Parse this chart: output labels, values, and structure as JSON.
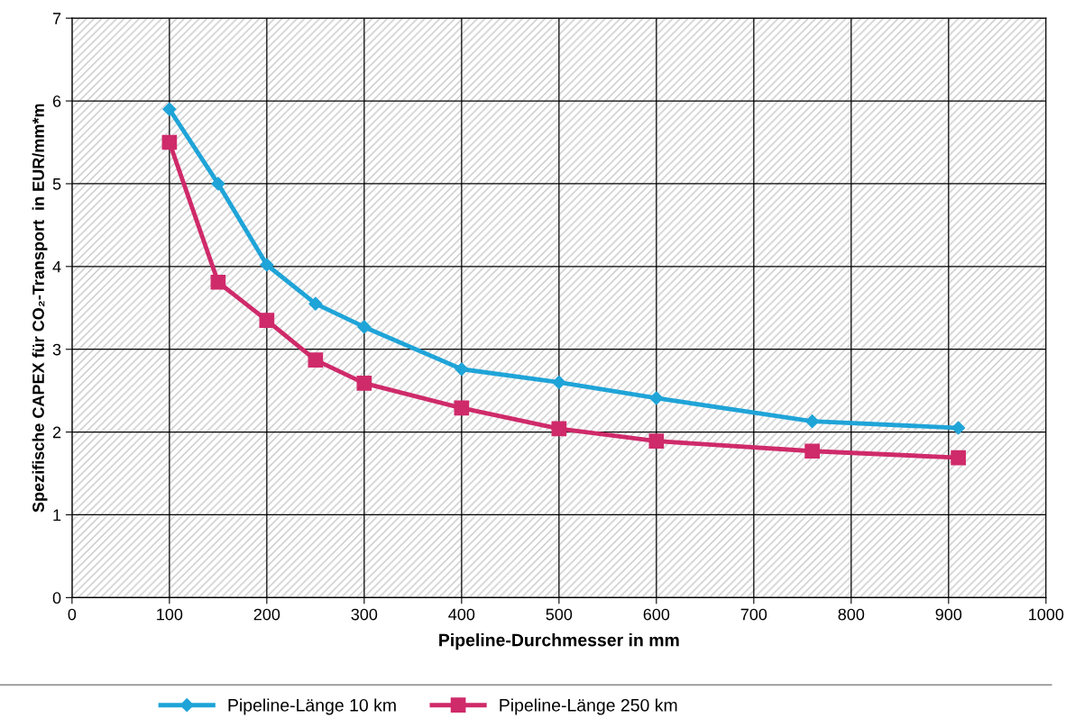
{
  "chart_data": {
    "type": "line",
    "xlabel": "Pipeline-Durchmesser in mm",
    "ylabel": "Spezifische CAPEX für CO₂-Transport  in EUR/mm*m",
    "x": [
      100,
      150,
      200,
      250,
      300,
      400,
      500,
      600,
      760,
      910
    ],
    "series": [
      {
        "name": "Pipeline-Länge 10 km",
        "color": "#1fa4d8",
        "marker": "diamond",
        "values": [
          5.9,
          5.0,
          4.02,
          3.55,
          3.27,
          2.76,
          2.6,
          2.41,
          2.13,
          2.05
        ]
      },
      {
        "name": "Pipeline-Länge 250 km",
        "color": "#cf2a6a",
        "marker": "square",
        "values": [
          5.5,
          3.81,
          3.35,
          2.87,
          2.59,
          2.29,
          2.04,
          1.89,
          1.77,
          1.69
        ]
      }
    ],
    "xlim": [
      0,
      1000
    ],
    "xticks": [
      0,
      100,
      200,
      300,
      400,
      500,
      600,
      700,
      800,
      900,
      1000
    ],
    "ylim": [
      0,
      7
    ],
    "yticks": [
      0,
      1,
      2,
      3,
      4,
      5,
      6,
      7
    ],
    "grid": true,
    "legend": "bottom",
    "line_style": "solid"
  }
}
